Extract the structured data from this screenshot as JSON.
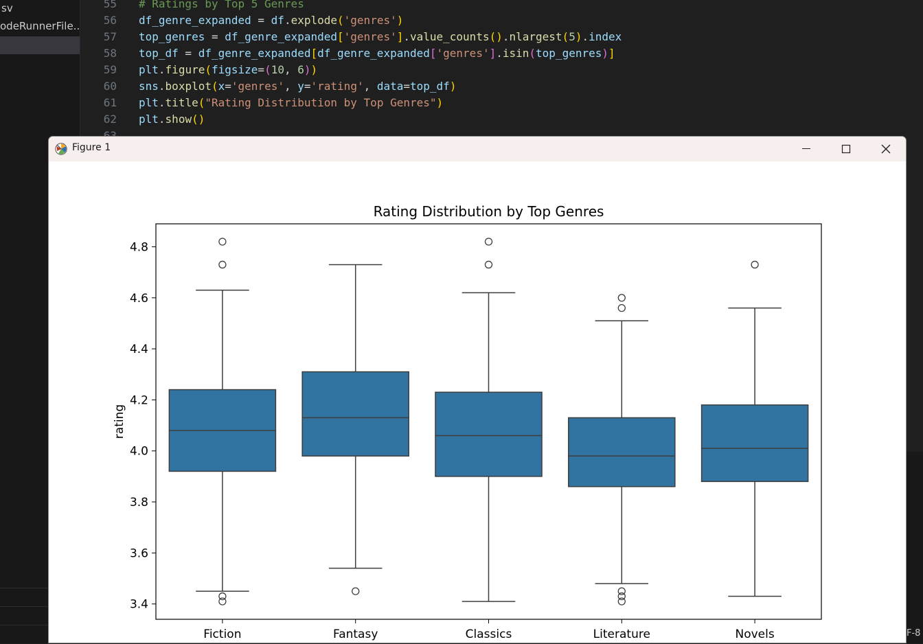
{
  "sidebar": {
    "items": [
      {
        "label": "sv"
      },
      {
        "label": "odeRunnerFile...."
      },
      {
        "label": ""
      }
    ]
  },
  "editor": {
    "lines": [
      {
        "num": "55",
        "tokens": [
          [
            "com",
            "# Ratings by Top 5 Genres"
          ]
        ]
      },
      {
        "num": "56",
        "tokens": [
          [
            "var",
            "df_genre_expanded"
          ],
          [
            "op",
            " = "
          ],
          [
            "var",
            "df"
          ],
          [
            "op",
            "."
          ],
          [
            "fn",
            "explode"
          ],
          [
            "b1",
            "("
          ],
          [
            "str",
            "'genres'"
          ],
          [
            "b1",
            ")"
          ]
        ]
      },
      {
        "num": "57",
        "tokens": [
          [
            "var",
            "top_genres"
          ],
          [
            "op",
            " = "
          ],
          [
            "var",
            "df_genre_expanded"
          ],
          [
            "b1",
            "["
          ],
          [
            "str",
            "'genres'"
          ],
          [
            "b1",
            "]"
          ],
          [
            "op",
            "."
          ],
          [
            "fn",
            "value_counts"
          ],
          [
            "b1",
            "()"
          ],
          [
            "op",
            "."
          ],
          [
            "fn",
            "nlargest"
          ],
          [
            "b1",
            "("
          ],
          [
            "num",
            "5"
          ],
          [
            "b1",
            ")"
          ],
          [
            "op",
            "."
          ],
          [
            "var",
            "index"
          ]
        ]
      },
      {
        "num": "58",
        "tokens": [
          [
            "var",
            "top_df"
          ],
          [
            "op",
            " = "
          ],
          [
            "var",
            "df_genre_expanded"
          ],
          [
            "b1",
            "["
          ],
          [
            "var",
            "df_genre_expanded"
          ],
          [
            "b2",
            "["
          ],
          [
            "str",
            "'genres'"
          ],
          [
            "b2",
            "]"
          ],
          [
            "op",
            "."
          ],
          [
            "fn",
            "isin"
          ],
          [
            "b2",
            "("
          ],
          [
            "var",
            "top_genres"
          ],
          [
            "b2",
            ")"
          ],
          [
            "b1",
            "]"
          ]
        ]
      },
      {
        "num": "59",
        "tokens": [
          [
            "var",
            "plt"
          ],
          [
            "op",
            "."
          ],
          [
            "fn",
            "figure"
          ],
          [
            "b1",
            "("
          ],
          [
            "var",
            "figsize"
          ],
          [
            "op",
            "="
          ],
          [
            "b2",
            "("
          ],
          [
            "num",
            "10"
          ],
          [
            "op",
            ", "
          ],
          [
            "num",
            "6"
          ],
          [
            "b2",
            ")"
          ],
          [
            "b1",
            ")"
          ]
        ]
      },
      {
        "num": "60",
        "tokens": [
          [
            "var",
            "sns"
          ],
          [
            "op",
            "."
          ],
          [
            "fn",
            "boxplot"
          ],
          [
            "b1",
            "("
          ],
          [
            "var",
            "x"
          ],
          [
            "op",
            "="
          ],
          [
            "str",
            "'genres'"
          ],
          [
            "op",
            ", "
          ],
          [
            "var",
            "y"
          ],
          [
            "op",
            "="
          ],
          [
            "str",
            "'rating'"
          ],
          [
            "op",
            ", "
          ],
          [
            "var",
            "data"
          ],
          [
            "op",
            "="
          ],
          [
            "var",
            "top_df"
          ],
          [
            "b1",
            ")"
          ]
        ]
      },
      {
        "num": "61",
        "tokens": [
          [
            "var",
            "plt"
          ],
          [
            "op",
            "."
          ],
          [
            "fn",
            "title"
          ],
          [
            "b1",
            "("
          ],
          [
            "str",
            "\"Rating Distribution by Top Genres\""
          ],
          [
            "b1",
            ")"
          ]
        ]
      },
      {
        "num": "62",
        "tokens": [
          [
            "var",
            "plt"
          ],
          [
            "op",
            "."
          ],
          [
            "fn",
            "show"
          ],
          [
            "b1",
            "()"
          ]
        ]
      },
      {
        "num": "63",
        "tokens": []
      }
    ]
  },
  "status": {
    "encoding": "F-8"
  },
  "window": {
    "title": "Figure 1",
    "minimize_icon": "minimize-icon",
    "maximize_icon": "maximize-icon",
    "close_icon": "close-icon"
  },
  "chart_data": {
    "type": "box",
    "title": "Rating Distribution by Top Genres",
    "xlabel": "",
    "ylabel": "rating",
    "ylim": [
      3.34,
      4.89
    ],
    "yticks": [
      3.4,
      3.6,
      3.8,
      4.0,
      4.2,
      4.4,
      4.6,
      4.8
    ],
    "ytick_labels": [
      "3.4",
      "3.6",
      "3.8",
      "4.0",
      "4.2",
      "4.4",
      "4.6",
      "4.8"
    ],
    "grid": false,
    "box_color": "#3274a1",
    "line_color": "#3d3d3d",
    "categories": [
      "Fiction",
      "Fantasy",
      "Classics",
      "Literature",
      "Novels"
    ],
    "boxes": [
      {
        "whisker_low": 3.45,
        "q1": 3.92,
        "median": 4.08,
        "q3": 4.24,
        "whisker_high": 4.63,
        "outliers": [
          3.43,
          3.41,
          4.73,
          4.82
        ]
      },
      {
        "whisker_low": 3.54,
        "q1": 3.98,
        "median": 4.13,
        "q3": 4.31,
        "whisker_high": 4.73,
        "outliers": [
          3.45
        ]
      },
      {
        "whisker_low": 3.41,
        "q1": 3.9,
        "median": 4.06,
        "q3": 4.23,
        "whisker_high": 4.62,
        "outliers": [
          4.73,
          4.82
        ]
      },
      {
        "whisker_low": 3.48,
        "q1": 3.86,
        "median": 3.98,
        "q3": 4.13,
        "whisker_high": 4.51,
        "outliers": [
          3.45,
          3.43,
          3.41,
          4.56,
          4.6
        ]
      },
      {
        "whisker_low": 3.43,
        "q1": 3.88,
        "median": 4.01,
        "q3": 4.18,
        "whisker_high": 4.56,
        "outliers": [
          4.73
        ]
      }
    ]
  }
}
